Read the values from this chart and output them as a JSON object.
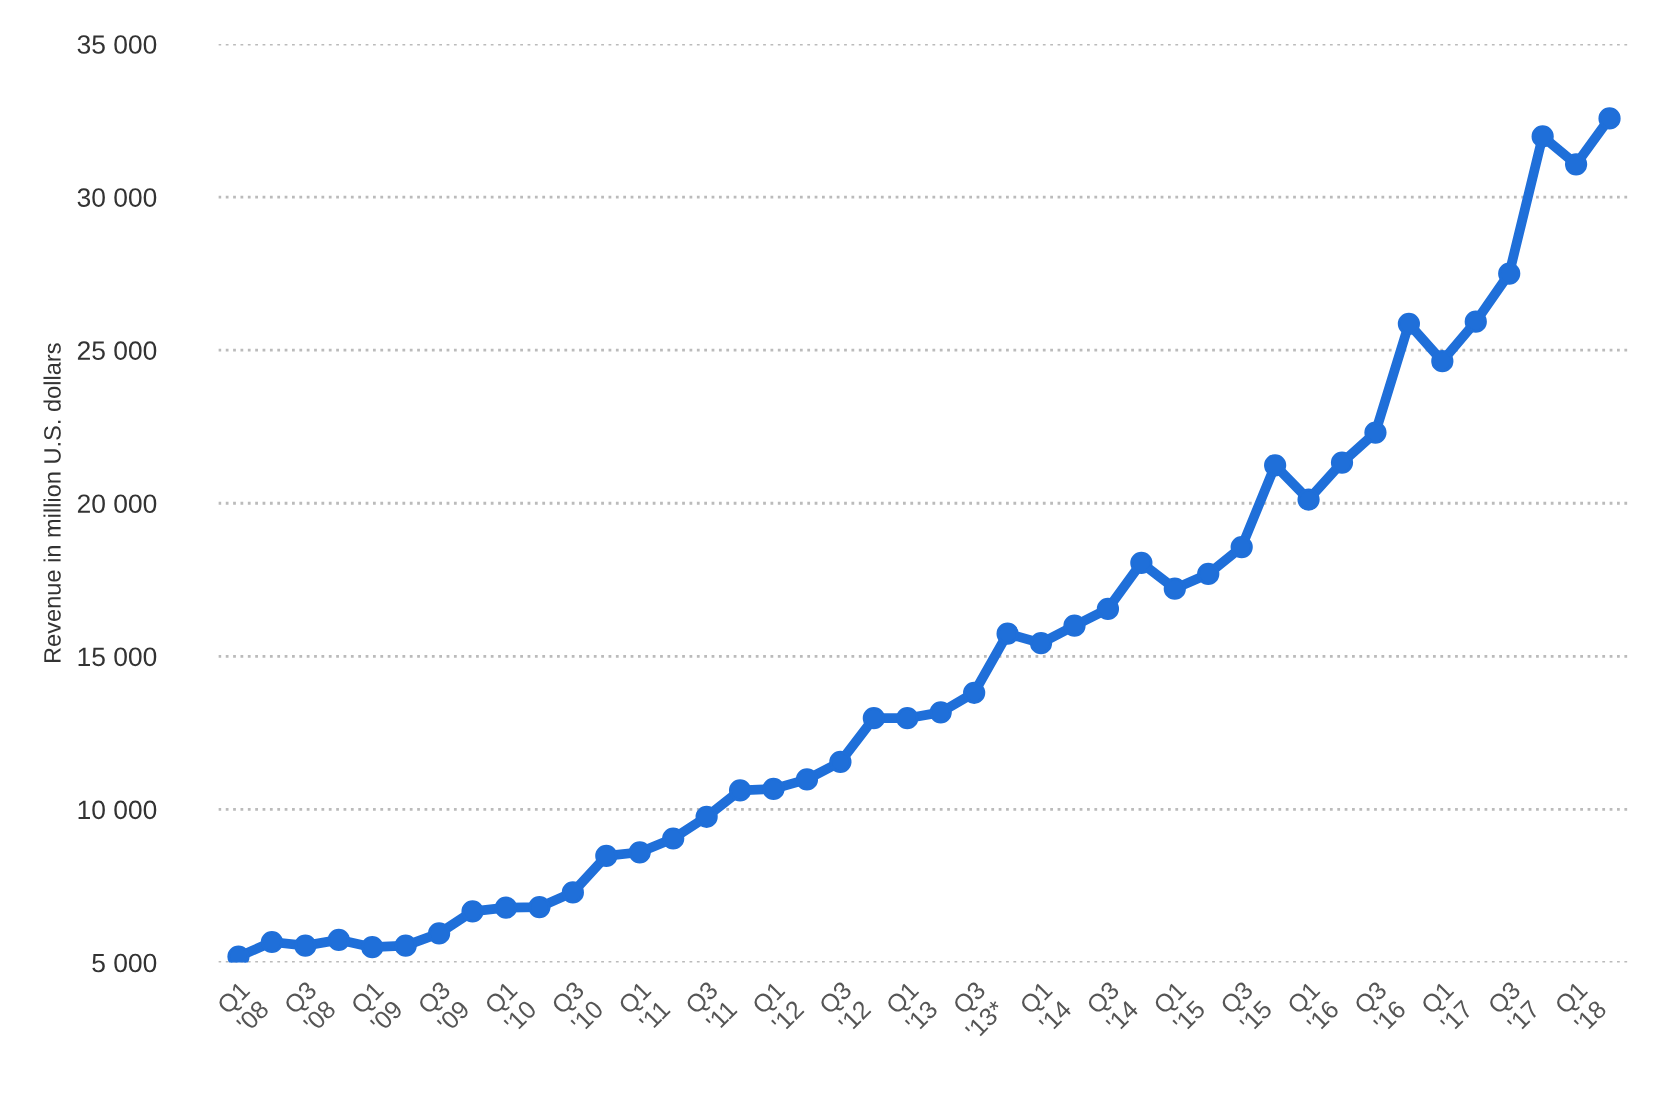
{
  "chart_data": {
    "type": "line",
    "ylabel": "Revenue in million U.S. dollars",
    "categories": [
      "Q1 '08",
      null,
      "Q3 '08",
      null,
      "Q1 '09",
      null,
      "Q3 '09",
      null,
      "Q1 '10",
      null,
      "Q3 '10",
      null,
      "Q1 '11",
      null,
      "Q3 '11",
      null,
      "Q1 '12",
      null,
      "Q3 '12",
      null,
      "Q1 '13",
      null,
      "Q3 '13*",
      null,
      "Q1 '14",
      null,
      "Q3 '14",
      null,
      "Q1 '15",
      null,
      "Q3 '15",
      null,
      "Q1 '16",
      null,
      "Q3 '16",
      null,
      "Q1 '17",
      null,
      "Q3 '17",
      null,
      "Q1 '18",
      null
    ],
    "series": [
      {
        "color": "#1f6fd9",
        "values": [
          5190,
          5670,
          5550,
          5740,
          5500,
          5550,
          5950,
          6670,
          6790,
          6810,
          7290,
          8480,
          8600,
          9050,
          9760,
          10620,
          10670,
          10980,
          11550,
          12980,
          12980,
          13170,
          13810,
          15740,
          15430,
          16000,
          16550,
          18050,
          17210,
          17690,
          18570,
          21240,
          20120,
          21330,
          22310,
          25860,
          24640,
          25930,
          27500,
          31980,
          31070,
          32570
        ]
      }
    ],
    "ylim": [
      5000,
      35000
    ],
    "yticks": [
      {
        "value": 5000,
        "label": "5 000"
      },
      {
        "value": 10000,
        "label": "10 000"
      },
      {
        "value": 15000,
        "label": "15 000"
      },
      {
        "value": 20000,
        "label": "20 000"
      },
      {
        "value": 25000,
        "label": "25 000"
      },
      {
        "value": 30000,
        "label": "30 000"
      },
      {
        "value": 35000,
        "label": "35 000"
      }
    ],
    "grid": "y",
    "marker": "circle",
    "line_style": "solid"
  }
}
